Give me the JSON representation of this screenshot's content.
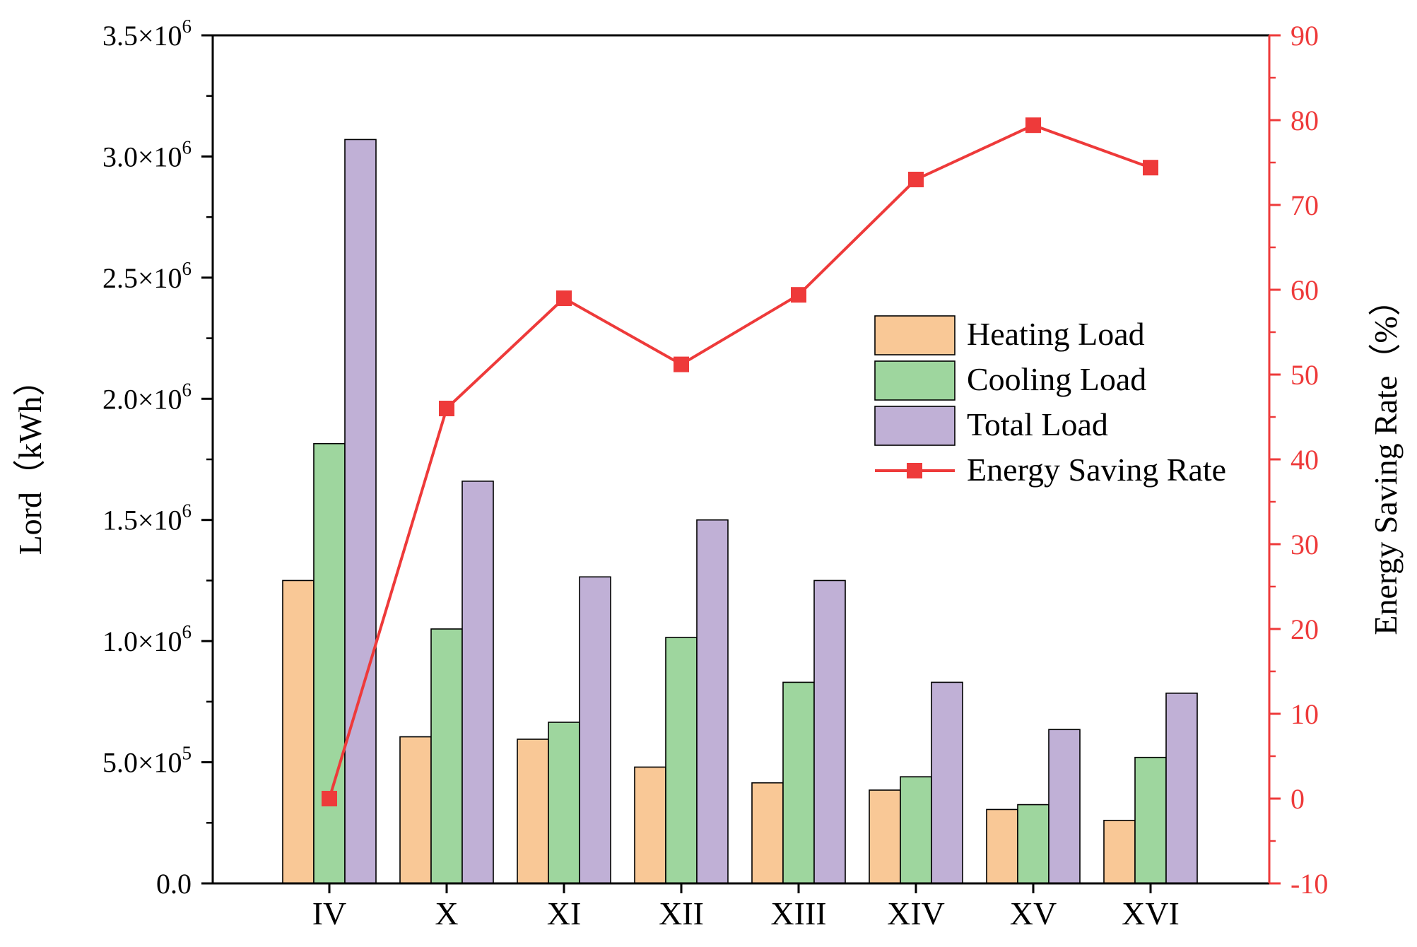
{
  "chart_data": {
    "type": "bar",
    "categories": [
      "IV",
      "X",
      "XI",
      "XII",
      "XIII",
      "XIV",
      "XV",
      "XVI"
    ],
    "series": [
      {
        "name": "Heating Load",
        "color": "#F9C896",
        "values": [
          1250000,
          605000,
          595000,
          480000,
          415000,
          385000,
          305000,
          260000
        ]
      },
      {
        "name": "Cooling Load",
        "color": "#9ED69E",
        "values": [
          1815000,
          1050000,
          665000,
          1015000,
          830000,
          440000,
          325000,
          520000
        ]
      },
      {
        "name": "Total Load",
        "color": "#C0B0D6",
        "values": [
          3070000,
          1660000,
          1265000,
          1500000,
          1250000,
          830000,
          635000,
          785000
        ]
      }
    ],
    "line_series": {
      "name": "Energy Saving Rate",
      "color": "#EE3A3A",
      "values": [
        0,
        46,
        59,
        51.2,
        59.4,
        73,
        79.4,
        74.4
      ]
    },
    "left_axis": {
      "title": "Lord（kWh）",
      "ylim": [
        0,
        3500000
      ],
      "ticks": [
        {
          "value": 0,
          "label": "0.0",
          "exp": ""
        },
        {
          "value": 500000,
          "label": "5.0×10",
          "exp": "5"
        },
        {
          "value": 1000000,
          "label": "1.0×10",
          "exp": "6"
        },
        {
          "value": 1500000,
          "label": "1.5×10",
          "exp": "6"
        },
        {
          "value": 2000000,
          "label": "2.0×10",
          "exp": "6"
        },
        {
          "value": 2500000,
          "label": "2.5×10",
          "exp": "6"
        },
        {
          "value": 3000000,
          "label": "3.0×10",
          "exp": "6"
        },
        {
          "value": 3500000,
          "label": "3.5×10",
          "exp": "6"
        }
      ]
    },
    "right_axis": {
      "title": "Energy Saving Rate（%）",
      "ylim": [
        -10,
        90
      ],
      "ticks": [
        -10,
        0,
        10,
        20,
        30,
        40,
        50,
        60,
        70,
        80,
        90
      ]
    },
    "legend": {
      "placement": "middle-right",
      "entries": [
        "Heating Load",
        "Cooling Load",
        "Total Load",
        "Energy Saving Rate"
      ]
    },
    "grid": false,
    "title": ""
  }
}
